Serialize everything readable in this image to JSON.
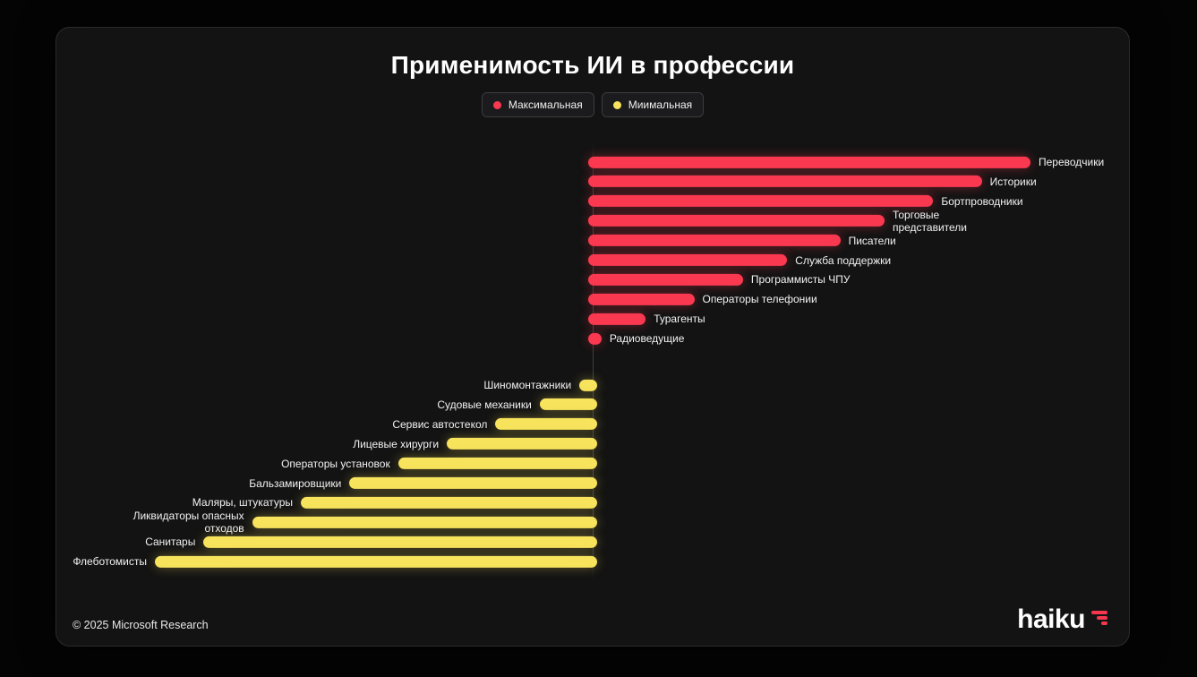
{
  "page": {
    "title": "Применимость ИИ в профессии",
    "footer_copyright": "© 2025 Microsoft Research",
    "brand": "haiku"
  },
  "legend": [
    {
      "label": "Максимальная",
      "color": "#fa3950"
    },
    {
      "label": "Миимальная",
      "color": "#f7e35c"
    }
  ],
  "chart_data": {
    "type": "bar",
    "orientation": "horizontal-diverging",
    "title": "Применимость ИИ в профессии",
    "value_unit": "relative applicability, % of longest bar (estimated from pixel lengths)",
    "axis": "central vertical baseline; 'Максимальная' bars extend right, 'Миимальная' bars extend left",
    "legend_position": "top-center",
    "grid": false,
    "series": [
      {
        "name": "Максимальная",
        "color": "#fa3950",
        "glow": "rgba(250,57,80,0.40)",
        "direction": "right",
        "items": [
          {
            "label": "Переводчики",
            "value": 100
          },
          {
            "label": "Историки",
            "value": 89
          },
          {
            "label": "Бортпроводники",
            "value": 78
          },
          {
            "label": "Торговые\nпредставители",
            "value": 67
          },
          {
            "label": "Писатели",
            "value": 57
          },
          {
            "label": "Служба поддержки",
            "value": 45
          },
          {
            "label": "Программисты ЧПУ",
            "value": 35
          },
          {
            "label": "Операторы телефонии",
            "value": 24
          },
          {
            "label": "Турагенты",
            "value": 13
          },
          {
            "label": "Радиоведущие",
            "value": 3
          }
        ]
      },
      {
        "name": "Миимальная",
        "color": "#f7e35c",
        "glow": "rgba(247,227,92,0.35)",
        "direction": "left",
        "items": [
          {
            "label": "Шиномонтажники",
            "value": 4
          },
          {
            "label": "Судовые механики",
            "value": 13
          },
          {
            "label": "Сервис автостекол",
            "value": 23
          },
          {
            "label": "Лицевые хирурги",
            "value": 34
          },
          {
            "label": "Операторы установок",
            "value": 45
          },
          {
            "label": "Бальзамировщики",
            "value": 56
          },
          {
            "label": "Маляры, штукатуры",
            "value": 67
          },
          {
            "label": "Ликвидаторы опасных\nотходов",
            "value": 78
          },
          {
            "label": "Санитары",
            "value": 89
          },
          {
            "label": "Флеботомисты",
            "value": 100
          }
        ]
      }
    ]
  }
}
